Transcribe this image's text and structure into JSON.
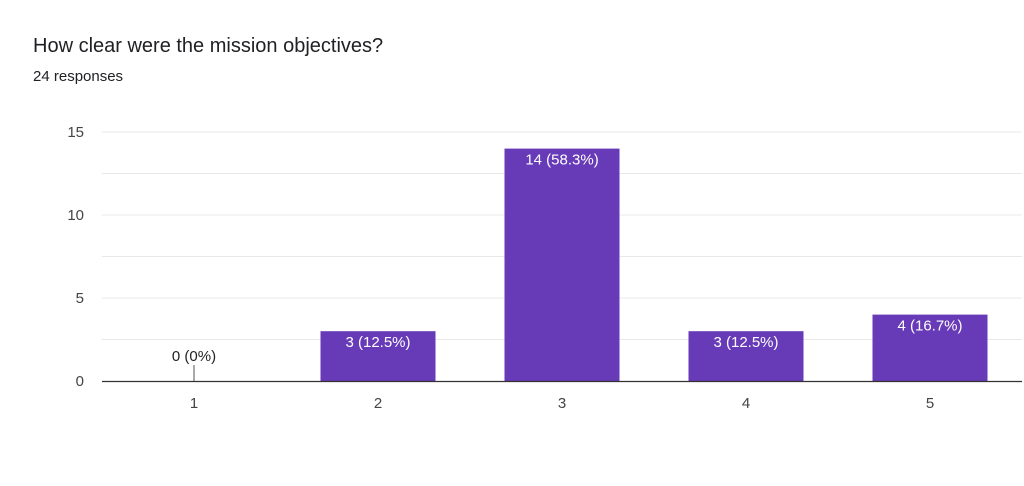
{
  "question": {
    "title": "How clear were the mission objectives?",
    "responses": "24 responses"
  },
  "colors": {
    "bar": "#673ab7",
    "grid": "#e8e8e8",
    "axis": "#333333"
  },
  "chart_data": {
    "type": "bar",
    "title": "",
    "xlabel": "",
    "ylabel": "",
    "categories": [
      "1",
      "2",
      "3",
      "4",
      "5"
    ],
    "values": [
      0,
      3,
      14,
      3,
      4
    ],
    "labels": [
      "0 (0%)",
      "3 (12.5%)",
      "14 (58.3%)",
      "3 (12.5%)",
      "4 (16.7%)"
    ],
    "ylim": [
      0,
      15
    ],
    "yticks": [
      0,
      5,
      10,
      15
    ],
    "grid": true
  }
}
